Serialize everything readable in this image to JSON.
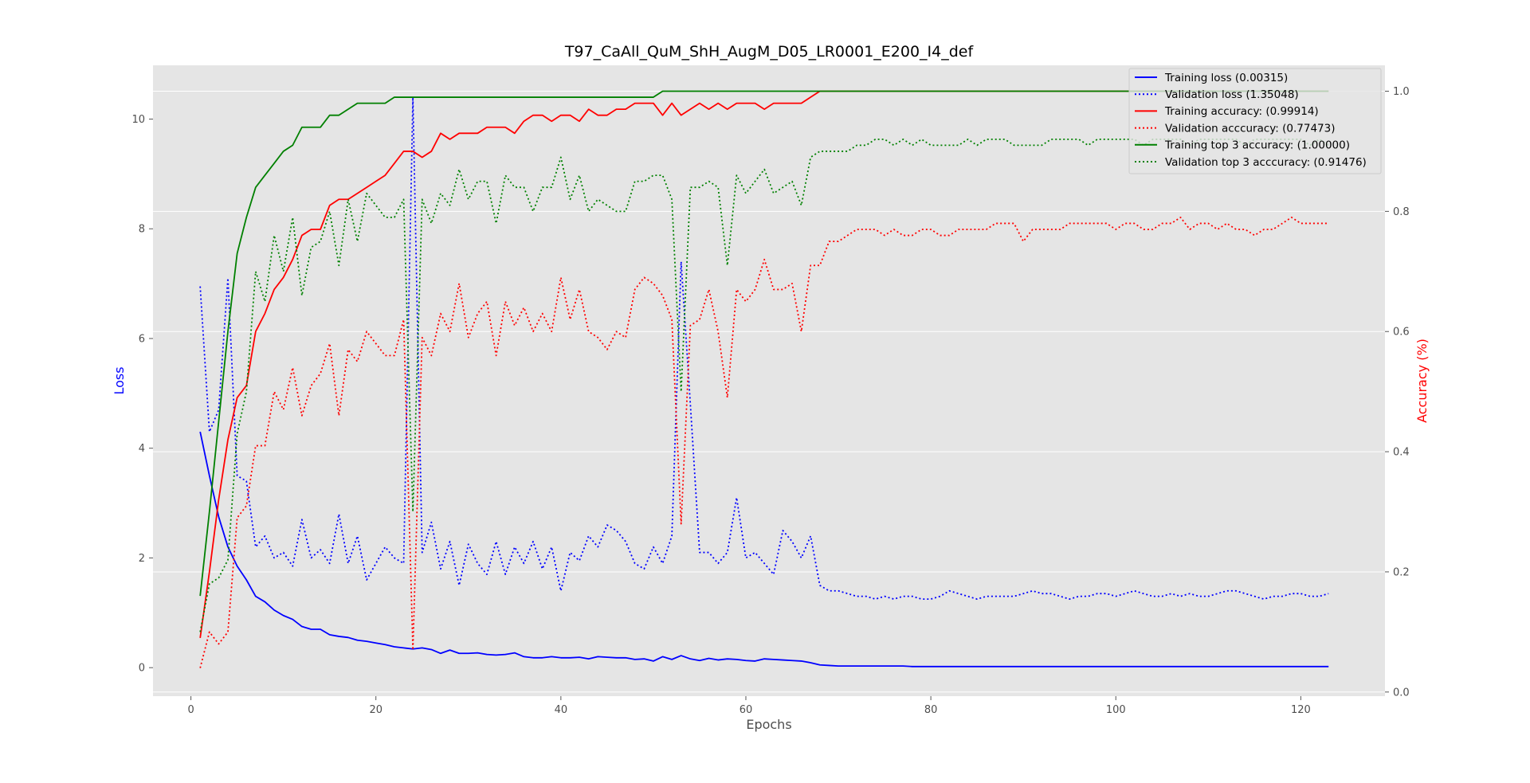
{
  "chart_data": {
    "type": "line",
    "title": "T97_CaAll_QuM_ShH_AugM_D05_LR0001_E200_I4_def",
    "xlabel": "Epochs",
    "ylabel": "Loss",
    "y2label": "Accuracy (%)",
    "xlim": [
      -4.1,
      129.1
    ],
    "ylim": [
      -0.52,
      10.98
    ],
    "y2lim": [
      -0.0069,
      1.0431
    ],
    "xticks": [
      0,
      20,
      40,
      60,
      80,
      100,
      120
    ],
    "yticks": [
      0,
      2,
      4,
      6,
      8,
      10
    ],
    "y2ticks": [
      0.0,
      0.2,
      0.4,
      0.6,
      0.8,
      1.0
    ],
    "x_start": 1,
    "grid": true,
    "legend_position": "top-right",
    "colors": {
      "loss_axis": "#0000ff",
      "accuracy_axis": "#ff0000",
      "plot_background": "#e5e5e5",
      "grid": "#ffffff"
    },
    "series": [
      {
        "name": "Training loss (0.00315)",
        "axis": "left",
        "color": "#0000ff",
        "style": "solid",
        "values": [
          4.3,
          3.5,
          2.75,
          2.2,
          1.85,
          1.6,
          1.3,
          1.2,
          1.05,
          0.95,
          0.88,
          0.75,
          0.7,
          0.7,
          0.6,
          0.57,
          0.55,
          0.5,
          0.48,
          0.45,
          0.42,
          0.38,
          0.36,
          0.34,
          0.36,
          0.33,
          0.26,
          0.32,
          0.26,
          0.26,
          0.27,
          0.24,
          0.23,
          0.24,
          0.27,
          0.2,
          0.18,
          0.18,
          0.2,
          0.18,
          0.18,
          0.19,
          0.16,
          0.2,
          0.19,
          0.18,
          0.18,
          0.15,
          0.16,
          0.12,
          0.2,
          0.15,
          0.22,
          0.16,
          0.13,
          0.17,
          0.14,
          0.16,
          0.15,
          0.13,
          0.12,
          0.16,
          0.15,
          0.14,
          0.13,
          0.12,
          0.09,
          0.05,
          0.04,
          0.03,
          0.03,
          0.03,
          0.03,
          0.03,
          0.03,
          0.03,
          0.03,
          0.02,
          0.02,
          0.02,
          0.02,
          0.02,
          0.02,
          0.02,
          0.02,
          0.02,
          0.02,
          0.02,
          0.02,
          0.02,
          0.02,
          0.02,
          0.02,
          0.02,
          0.02,
          0.02,
          0.02,
          0.02,
          0.02,
          0.02,
          0.02,
          0.02,
          0.02,
          0.02,
          0.02,
          0.02,
          0.02,
          0.02,
          0.02,
          0.02,
          0.02,
          0.02,
          0.02,
          0.02,
          0.02,
          0.02,
          0.02,
          0.02,
          0.02,
          0.02,
          0.02,
          0.02,
          0.02
        ]
      },
      {
        "name": "Validation loss (1.35048)",
        "axis": "left",
        "color": "#0000ff",
        "style": "dotted",
        "values": [
          6.95,
          4.3,
          4.7,
          7.1,
          3.5,
          3.4,
          2.2,
          2.4,
          2.0,
          2.1,
          1.85,
          2.7,
          2.0,
          2.15,
          1.9,
          2.8,
          1.9,
          2.4,
          1.6,
          1.9,
          2.2,
          2.0,
          1.9,
          10.4,
          2.1,
          2.65,
          1.8,
          2.3,
          1.5,
          2.25,
          1.9,
          1.7,
          2.3,
          1.7,
          2.2,
          1.9,
          2.3,
          1.8,
          2.2,
          1.4,
          2.1,
          1.95,
          2.4,
          2.2,
          2.6,
          2.5,
          2.3,
          1.9,
          1.8,
          2.2,
          1.9,
          2.4,
          7.4,
          4.8,
          2.1,
          2.1,
          1.9,
          2.1,
          3.1,
          2.0,
          2.1,
          1.9,
          1.7,
          2.5,
          2.3,
          2.0,
          2.4,
          1.5,
          1.4,
          1.4,
          1.35,
          1.3,
          1.3,
          1.25,
          1.3,
          1.25,
          1.3,
          1.3,
          1.25,
          1.25,
          1.3,
          1.4,
          1.35,
          1.3,
          1.25,
          1.3,
          1.3,
          1.3,
          1.3,
          1.35,
          1.4,
          1.35,
          1.35,
          1.3,
          1.25,
          1.3,
          1.3,
          1.35,
          1.35,
          1.3,
          1.35,
          1.4,
          1.35,
          1.3,
          1.3,
          1.35,
          1.3,
          1.35,
          1.3,
          1.3,
          1.35,
          1.4,
          1.4,
          1.35,
          1.3,
          1.25,
          1.3,
          1.3,
          1.35,
          1.35,
          1.3,
          1.3,
          1.35
        ]
      },
      {
        "name": "Training accuracy: (0.99914)",
        "axis": "right",
        "color": "#ff0000",
        "style": "solid",
        "values": [
          0.09,
          0.2,
          0.32,
          0.42,
          0.49,
          0.51,
          0.6,
          0.63,
          0.67,
          0.69,
          0.72,
          0.76,
          0.77,
          0.77,
          0.81,
          0.82,
          0.82,
          0.83,
          0.84,
          0.85,
          0.86,
          0.88,
          0.9,
          0.9,
          0.89,
          0.9,
          0.93,
          0.92,
          0.93,
          0.93,
          0.93,
          0.94,
          0.94,
          0.94,
          0.93,
          0.95,
          0.96,
          0.96,
          0.95,
          0.96,
          0.96,
          0.95,
          0.97,
          0.96,
          0.96,
          0.97,
          0.97,
          0.98,
          0.98,
          0.98,
          0.96,
          0.98,
          0.96,
          0.97,
          0.98,
          0.97,
          0.98,
          0.97,
          0.98,
          0.98,
          0.98,
          0.97,
          0.98,
          0.98,
          0.98,
          0.98,
          0.99,
          1.0,
          1.0,
          1.0,
          1.0,
          1.0,
          1.0,
          1.0,
          1.0,
          1.0,
          1.0,
          1.0,
          1.0,
          1.0,
          1.0,
          1.0,
          1.0,
          1.0,
          1.0,
          1.0,
          1.0,
          1.0,
          1.0,
          1.0,
          1.0,
          1.0,
          1.0,
          1.0,
          1.0,
          1.0,
          1.0,
          1.0,
          1.0,
          1.0,
          1.0,
          1.0,
          1.0,
          1.0,
          1.0,
          1.0,
          1.0,
          1.0,
          1.0,
          1.0,
          1.0,
          1.0,
          1.0,
          1.0,
          1.0,
          1.0,
          1.0,
          1.0,
          1.0,
          1.0,
          1.0,
          1.0,
          1.0
        ]
      },
      {
        "name": "Validation acccuracy: (0.77473)",
        "axis": "right",
        "color": "#ff0000",
        "style": "dotted",
        "values": [
          0.04,
          0.1,
          0.08,
          0.1,
          0.29,
          0.31,
          0.41,
          0.41,
          0.5,
          0.47,
          0.54,
          0.46,
          0.51,
          0.53,
          0.58,
          0.46,
          0.57,
          0.55,
          0.6,
          0.58,
          0.56,
          0.56,
          0.62,
          0.07,
          0.59,
          0.56,
          0.63,
          0.6,
          0.68,
          0.59,
          0.63,
          0.65,
          0.56,
          0.65,
          0.61,
          0.64,
          0.6,
          0.63,
          0.6,
          0.69,
          0.62,
          0.67,
          0.6,
          0.59,
          0.57,
          0.6,
          0.59,
          0.67,
          0.69,
          0.68,
          0.66,
          0.62,
          0.28,
          0.61,
          0.62,
          0.67,
          0.6,
          0.49,
          0.67,
          0.65,
          0.67,
          0.72,
          0.67,
          0.67,
          0.68,
          0.6,
          0.71,
          0.71,
          0.75,
          0.75,
          0.76,
          0.77,
          0.77,
          0.77,
          0.76,
          0.77,
          0.76,
          0.76,
          0.77,
          0.77,
          0.76,
          0.76,
          0.77,
          0.77,
          0.77,
          0.77,
          0.78,
          0.78,
          0.78,
          0.75,
          0.77,
          0.77,
          0.77,
          0.77,
          0.78,
          0.78,
          0.78,
          0.78,
          0.78,
          0.77,
          0.78,
          0.78,
          0.77,
          0.77,
          0.78,
          0.78,
          0.79,
          0.77,
          0.78,
          0.78,
          0.77,
          0.78,
          0.77,
          0.77,
          0.76,
          0.77,
          0.77,
          0.78,
          0.79,
          0.78,
          0.78,
          0.78,
          0.78
        ]
      },
      {
        "name": "Training top 3 accuracy: (1.00000)",
        "axis": "right",
        "color": "#008000",
        "style": "solid",
        "values": [
          0.16,
          0.3,
          0.45,
          0.6,
          0.73,
          0.79,
          0.84,
          0.86,
          0.88,
          0.9,
          0.91,
          0.94,
          0.94,
          0.94,
          0.96,
          0.96,
          0.97,
          0.98,
          0.98,
          0.98,
          0.98,
          0.99,
          0.99,
          0.99,
          0.99,
          0.99,
          0.99,
          0.99,
          0.99,
          0.99,
          0.99,
          0.99,
          0.99,
          0.99,
          0.99,
          0.99,
          0.99,
          0.99,
          0.99,
          0.99,
          0.99,
          0.99,
          0.99,
          0.99,
          0.99,
          0.99,
          0.99,
          0.99,
          0.99,
          0.99,
          1.0,
          1.0,
          1.0,
          1.0,
          1.0,
          1.0,
          1.0,
          1.0,
          1.0,
          1.0,
          1.0,
          1.0,
          1.0,
          1.0,
          1.0,
          1.0,
          1.0,
          1.0,
          1.0,
          1.0,
          1.0,
          1.0,
          1.0,
          1.0,
          1.0,
          1.0,
          1.0,
          1.0,
          1.0,
          1.0,
          1.0,
          1.0,
          1.0,
          1.0,
          1.0,
          1.0,
          1.0,
          1.0,
          1.0,
          1.0,
          1.0,
          1.0,
          1.0,
          1.0,
          1.0,
          1.0,
          1.0,
          1.0,
          1.0,
          1.0,
          1.0,
          1.0,
          1.0,
          1.0,
          1.0,
          1.0,
          1.0,
          1.0,
          1.0,
          1.0,
          1.0,
          1.0,
          1.0,
          1.0,
          1.0,
          1.0,
          1.0,
          1.0,
          1.0,
          1.0,
          1.0,
          1.0,
          1.0
        ]
      },
      {
        "name": "Validation top 3 acccuracy: (0.91476)",
        "axis": "right",
        "color": "#008000",
        "style": "dotted",
        "values": [
          0.1,
          0.18,
          0.19,
          0.22,
          0.43,
          0.5,
          0.7,
          0.65,
          0.76,
          0.7,
          0.79,
          0.66,
          0.74,
          0.75,
          0.8,
          0.71,
          0.82,
          0.75,
          0.83,
          0.81,
          0.79,
          0.79,
          0.82,
          0.3,
          0.82,
          0.78,
          0.83,
          0.81,
          0.87,
          0.82,
          0.85,
          0.85,
          0.78,
          0.86,
          0.84,
          0.84,
          0.8,
          0.84,
          0.84,
          0.89,
          0.82,
          0.86,
          0.8,
          0.82,
          0.81,
          0.8,
          0.8,
          0.85,
          0.85,
          0.86,
          0.86,
          0.82,
          0.5,
          0.84,
          0.84,
          0.85,
          0.84,
          0.71,
          0.86,
          0.83,
          0.85,
          0.87,
          0.83,
          0.84,
          0.85,
          0.81,
          0.89,
          0.9,
          0.9,
          0.9,
          0.9,
          0.91,
          0.91,
          0.92,
          0.92,
          0.91,
          0.92,
          0.91,
          0.92,
          0.91,
          0.91,
          0.91,
          0.91,
          0.92,
          0.91,
          0.92,
          0.92,
          0.92,
          0.91,
          0.91,
          0.91,
          0.91,
          0.92,
          0.92,
          0.92,
          0.92,
          0.91,
          0.92,
          0.92,
          0.92,
          0.92,
          0.92,
          0.91,
          0.92,
          0.92,
          0.92,
          0.92,
          0.91,
          0.92,
          0.92,
          0.92,
          0.92,
          0.92,
          0.91,
          0.92,
          0.92,
          0.92,
          0.92,
          0.92,
          0.92,
          0.91,
          0.92,
          0.91
        ]
      }
    ]
  }
}
